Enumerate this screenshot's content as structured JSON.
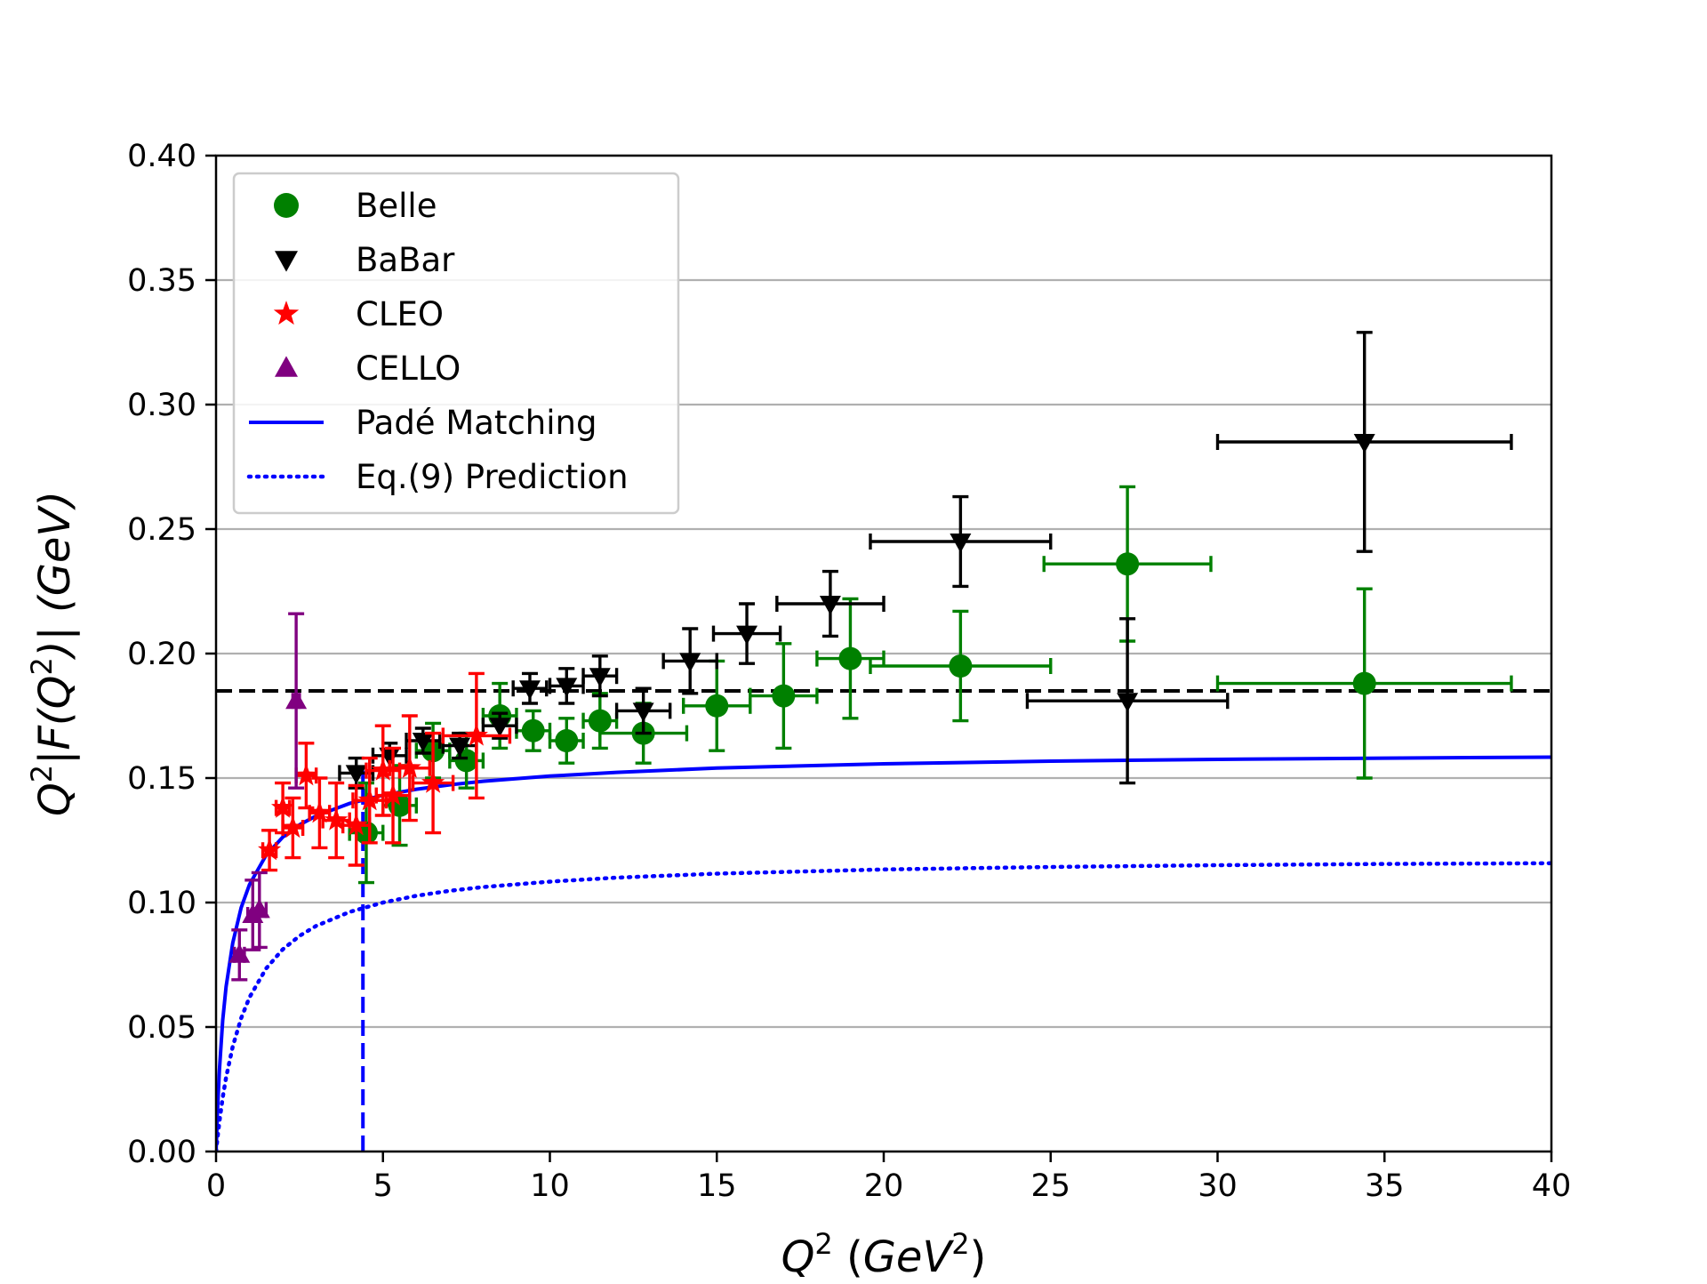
{
  "chart_data": {
    "type": "scatter",
    "title": "",
    "xlabel": {
      "base": "Q",
      "sup": "2",
      "open": " (",
      "unit": "GeV",
      "unit_sup": "2",
      "close": ")"
    },
    "ylabel": {
      "p1": "Q",
      "s1": "2",
      "p2": "|F(Q",
      "s2": "2",
      "p3": ")| (GeV)"
    },
    "xlim": [
      0,
      40
    ],
    "ylim": [
      0,
      0.4
    ],
    "xticks": [
      0,
      5,
      10,
      15,
      20,
      25,
      30,
      35,
      40
    ],
    "xtick_labels": [
      "0",
      "5",
      "10",
      "15",
      "20",
      "25",
      "30",
      "35",
      "40"
    ],
    "yticks": [
      0,
      0.05,
      0.1,
      0.15,
      0.2,
      0.25,
      0.3,
      0.35,
      0.4
    ],
    "ytick_labels": [
      "0.00",
      "0.05",
      "0.10",
      "0.15",
      "0.20",
      "0.25",
      "0.30",
      "0.35",
      "0.40"
    ],
    "grid": "horizontal",
    "legend_position": "top-left",
    "series": [
      {
        "name": "Belle",
        "kind": "points",
        "marker": "circle",
        "color": "#008000",
        "x": [
          4.5,
          5.5,
          6.5,
          7.5,
          8.5,
          9.5,
          10.5,
          11.5,
          12.8,
          15.0,
          17.0,
          19.0,
          22.3,
          27.3,
          34.4
        ],
        "y": [
          0.128,
          0.139,
          0.161,
          0.157,
          0.175,
          0.169,
          0.165,
          0.173,
          0.168,
          0.179,
          0.183,
          0.198,
          0.195,
          0.236,
          0.188
        ],
        "xerr": [
          0.5,
          0.5,
          0.5,
          0.5,
          0.5,
          0.5,
          0.5,
          0.5,
          1.3,
          1.0,
          1.0,
          1.0,
          2.7,
          2.5,
          4.4
        ],
        "yerr": [
          0.02,
          0.016,
          0.011,
          0.011,
          0.013,
          0.008,
          0.009,
          0.011,
          0.012,
          0.018,
          0.021,
          0.024,
          0.022,
          0.031,
          0.038
        ]
      },
      {
        "name": "BaBar",
        "kind": "points",
        "marker": "triangle-down",
        "color": "#000000",
        "x": [
          4.2,
          5.2,
          6.2,
          7.3,
          8.5,
          9.4,
          10.5,
          11.5,
          12.8,
          14.2,
          15.9,
          18.4,
          22.3,
          27.3,
          34.4
        ],
        "y": [
          0.152,
          0.159,
          0.165,
          0.163,
          0.171,
          0.186,
          0.187,
          0.191,
          0.177,
          0.197,
          0.208,
          0.22,
          0.245,
          0.181,
          0.285
        ],
        "xerr": [
          0.5,
          0.5,
          0.5,
          0.5,
          0.5,
          0.5,
          0.5,
          0.5,
          0.8,
          0.8,
          1.0,
          1.6,
          2.7,
          3.0,
          4.4
        ],
        "yerr": [
          0.006,
          0.005,
          0.005,
          0.005,
          0.005,
          0.006,
          0.007,
          0.008,
          0.009,
          0.013,
          0.012,
          0.013,
          0.018,
          0.033,
          0.044
        ]
      },
      {
        "name": "CLEO",
        "kind": "points",
        "marker": "star",
        "color": "#ff0000",
        "x": [
          1.6,
          2.0,
          2.3,
          2.7,
          3.1,
          3.6,
          4.2,
          4.6,
          5.0,
          5.3,
          5.8,
          6.5,
          7.8
        ],
        "y": [
          0.121,
          0.138,
          0.13,
          0.151,
          0.136,
          0.133,
          0.131,
          0.141,
          0.153,
          0.143,
          0.154,
          0.148,
          0.167
        ],
        "xerr": [
          0.2,
          0.2,
          0.3,
          0.3,
          0.3,
          0.4,
          0.4,
          0.5,
          0.5,
          0.5,
          0.6,
          0.6,
          1.0
        ],
        "yerr": [
          0.008,
          0.01,
          0.012,
          0.013,
          0.014,
          0.015,
          0.016,
          0.017,
          0.018,
          0.019,
          0.021,
          0.02,
          0.025
        ]
      },
      {
        "name": "CELLO",
        "kind": "points",
        "marker": "triangle-up",
        "color": "#800080",
        "x": [
          0.7,
          1.1,
          1.3,
          2.4
        ],
        "y": [
          0.079,
          0.095,
          0.097,
          0.181
        ],
        "xerr": [
          0.15,
          0.15,
          0.2,
          0.1
        ],
        "yerr": [
          0.01,
          0.014,
          0.015,
          0.035
        ]
      },
      {
        "name": "Padé Matching",
        "kind": "line",
        "style": "solid",
        "color": "#0000ff",
        "x": [
          0,
          0.05,
          0.1,
          0.2,
          0.3,
          0.5,
          0.75,
          1.0,
          1.5,
          2.0,
          2.5,
          3.0,
          4.0,
          5.0,
          6.0,
          7.0,
          8.0,
          10.0,
          12.0,
          15.0,
          20.0,
          25.0,
          30.0,
          35.0,
          40.0
        ],
        "y": [
          0.0,
          0.0186,
          0.0327,
          0.0527,
          0.0662,
          0.0838,
          0.0979,
          0.1072,
          0.119,
          0.1263,
          0.1312,
          0.1348,
          0.1398,
          0.1431,
          0.1455,
          0.1473,
          0.1487,
          0.1508,
          0.1523,
          0.154,
          0.1557,
          0.1568,
          0.1575,
          0.158,
          0.1584
        ]
      },
      {
        "name": "Eq.(9) Prediction",
        "kind": "line",
        "style": "dotted",
        "color": "#0000ff",
        "x": [
          0,
          0.05,
          0.1,
          0.2,
          0.3,
          0.5,
          0.75,
          1.0,
          1.5,
          2.0,
          2.5,
          3.0,
          4.0,
          5.0,
          6.0,
          7.0,
          8.0,
          10.0,
          12.0,
          15.0,
          20.0,
          25.0,
          30.0,
          35.0,
          40.0
        ],
        "y": [
          0.0,
          0.0063,
          0.012,
          0.0217,
          0.0297,
          0.0422,
          0.0535,
          0.0619,
          0.0735,
          0.0812,
          0.0866,
          0.0906,
          0.0962,
          0.1,
          0.1027,
          0.1047,
          0.1062,
          0.1084,
          0.11,
          0.1116,
          0.1133,
          0.1143,
          0.115,
          0.1155,
          0.1158
        ]
      }
    ],
    "reference_lines": [
      {
        "orientation": "horizontal",
        "value": 0.185,
        "style": "dashed",
        "color": "#000000"
      },
      {
        "orientation": "vertical",
        "value": 4.4,
        "from": 0,
        "to": 0.153,
        "style": "dashed",
        "color": "#0000ff"
      }
    ]
  }
}
